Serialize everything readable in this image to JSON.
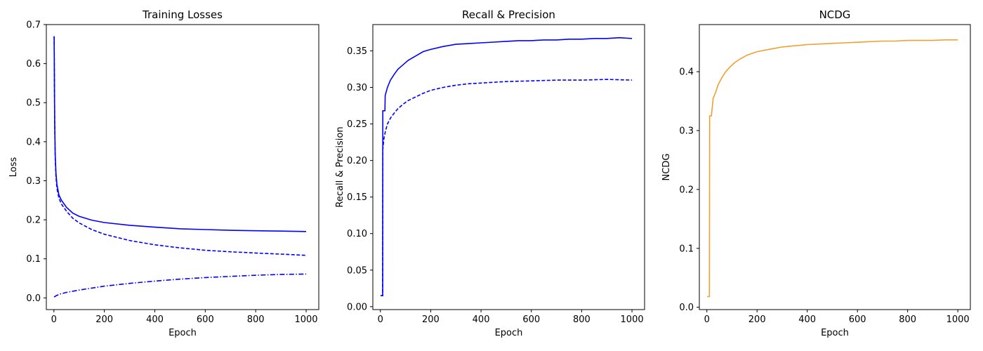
{
  "chart_data": [
    {
      "type": "line",
      "title": "Training Losses",
      "xlabel": "Epoch",
      "ylabel": "Loss",
      "xlim": [
        -30,
        1050
      ],
      "ylim": [
        -0.03,
        0.7
      ],
      "xticks": [
        0,
        200,
        400,
        600,
        800,
        1000
      ],
      "yticks": [
        0.0,
        0.1,
        0.2,
        0.3,
        0.4,
        0.5,
        0.6,
        0.7
      ],
      "ytick_decimals": 1,
      "grid": false,
      "series": [
        {
          "color": "#0000ff",
          "dash": "solid",
          "x": [
            1,
            3,
            5,
            8,
            12,
            20,
            30,
            50,
            75,
            100,
            150,
            200,
            300,
            400,
            500,
            600,
            700,
            800,
            900,
            1000
          ],
          "y": [
            0.67,
            0.45,
            0.37,
            0.32,
            0.29,
            0.263,
            0.25,
            0.232,
            0.217,
            0.209,
            0.199,
            0.193,
            0.186,
            0.181,
            0.177,
            0.175,
            0.173,
            0.172,
            0.171,
            0.17
          ]
        },
        {
          "color": "#0000ff",
          "dash": "dashed",
          "x": [
            1,
            3,
            5,
            8,
            12,
            20,
            30,
            50,
            75,
            100,
            150,
            200,
            300,
            400,
            500,
            600,
            700,
            800,
            900,
            1000
          ],
          "y": [
            0.67,
            0.45,
            0.36,
            0.31,
            0.28,
            0.255,
            0.24,
            0.222,
            0.204,
            0.192,
            0.175,
            0.163,
            0.147,
            0.136,
            0.128,
            0.122,
            0.118,
            0.115,
            0.112,
            0.109
          ]
        },
        {
          "color": "#0000ff",
          "dash": "dashdot",
          "x": [
            1,
            10,
            25,
            50,
            100,
            200,
            300,
            400,
            500,
            600,
            700,
            800,
            900,
            1000
          ],
          "y": [
            0.002,
            0.006,
            0.01,
            0.014,
            0.02,
            0.03,
            0.037,
            0.043,
            0.048,
            0.052,
            0.055,
            0.058,
            0.06,
            0.061
          ]
        }
      ]
    },
    {
      "type": "line",
      "title": "Recall & Precision",
      "xlabel": "Epoch",
      "ylabel": "Recall & Precision",
      "xlim": [
        -30,
        1050
      ],
      "ylim": [
        -0.004,
        0.386
      ],
      "xticks": [
        0,
        200,
        400,
        600,
        800,
        1000
      ],
      "yticks": [
        0.0,
        0.05,
        0.1,
        0.15,
        0.2,
        0.25,
        0.3,
        0.35
      ],
      "ytick_decimals": 2,
      "grid": false,
      "series": [
        {
          "color": "#0000ff",
          "dash": "solid",
          "x": [
            1,
            9,
            9.5,
            18,
            19,
            28,
            40,
            55,
            70,
            90,
            110,
            140,
            170,
            200,
            250,
            300,
            350,
            400,
            450,
            500,
            550,
            600,
            650,
            700,
            750,
            800,
            850,
            900,
            950,
            1000
          ],
          "y": [
            0.015,
            0.015,
            0.268,
            0.268,
            0.289,
            0.3,
            0.31,
            0.318,
            0.325,
            0.331,
            0.337,
            0.343,
            0.349,
            0.352,
            0.356,
            0.359,
            0.36,
            0.361,
            0.362,
            0.363,
            0.364,
            0.364,
            0.365,
            0.365,
            0.366,
            0.366,
            0.367,
            0.367,
            0.368,
            0.367
          ]
        },
        {
          "color": "#0000ff",
          "dash": "dashed",
          "x": [
            1,
            9,
            9.5,
            14,
            20,
            28,
            40,
            55,
            70,
            90,
            110,
            140,
            170,
            200,
            250,
            300,
            350,
            400,
            450,
            500,
            600,
            700,
            800,
            900,
            1000
          ],
          "y": [
            0.015,
            0.015,
            0.215,
            0.23,
            0.24,
            0.25,
            0.258,
            0.265,
            0.271,
            0.277,
            0.282,
            0.287,
            0.292,
            0.296,
            0.3,
            0.303,
            0.305,
            0.306,
            0.307,
            0.308,
            0.309,
            0.31,
            0.31,
            0.311,
            0.31
          ]
        }
      ]
    },
    {
      "type": "line",
      "title": "NCDG",
      "xlabel": "Epoch",
      "ylabel": "NCDG",
      "xlim": [
        -30,
        1050
      ],
      "ylim": [
        -0.004,
        0.48
      ],
      "xticks": [
        0,
        200,
        400,
        600,
        800,
        1000
      ],
      "yticks": [
        0.0,
        0.1,
        0.2,
        0.3,
        0.4
      ],
      "ytick_decimals": 1,
      "grid": false,
      "series": [
        {
          "color": "#f0a030",
          "dash": "solid",
          "x": [
            1,
            10,
            11,
            18,
            25,
            35,
            45,
            60,
            75,
            90,
            110,
            130,
            160,
            200,
            250,
            300,
            350,
            400,
            450,
            500,
            550,
            600,
            650,
            700,
            750,
            800,
            850,
            900,
            950,
            1000
          ],
          "y": [
            0.018,
            0.018,
            0.325,
            0.325,
            0.355,
            0.365,
            0.378,
            0.39,
            0.4,
            0.407,
            0.415,
            0.421,
            0.428,
            0.434,
            0.438,
            0.442,
            0.444,
            0.446,
            0.447,
            0.448,
            0.449,
            0.45,
            0.451,
            0.452,
            0.452,
            0.453,
            0.453,
            0.453,
            0.454,
            0.454
          ]
        }
      ]
    }
  ]
}
